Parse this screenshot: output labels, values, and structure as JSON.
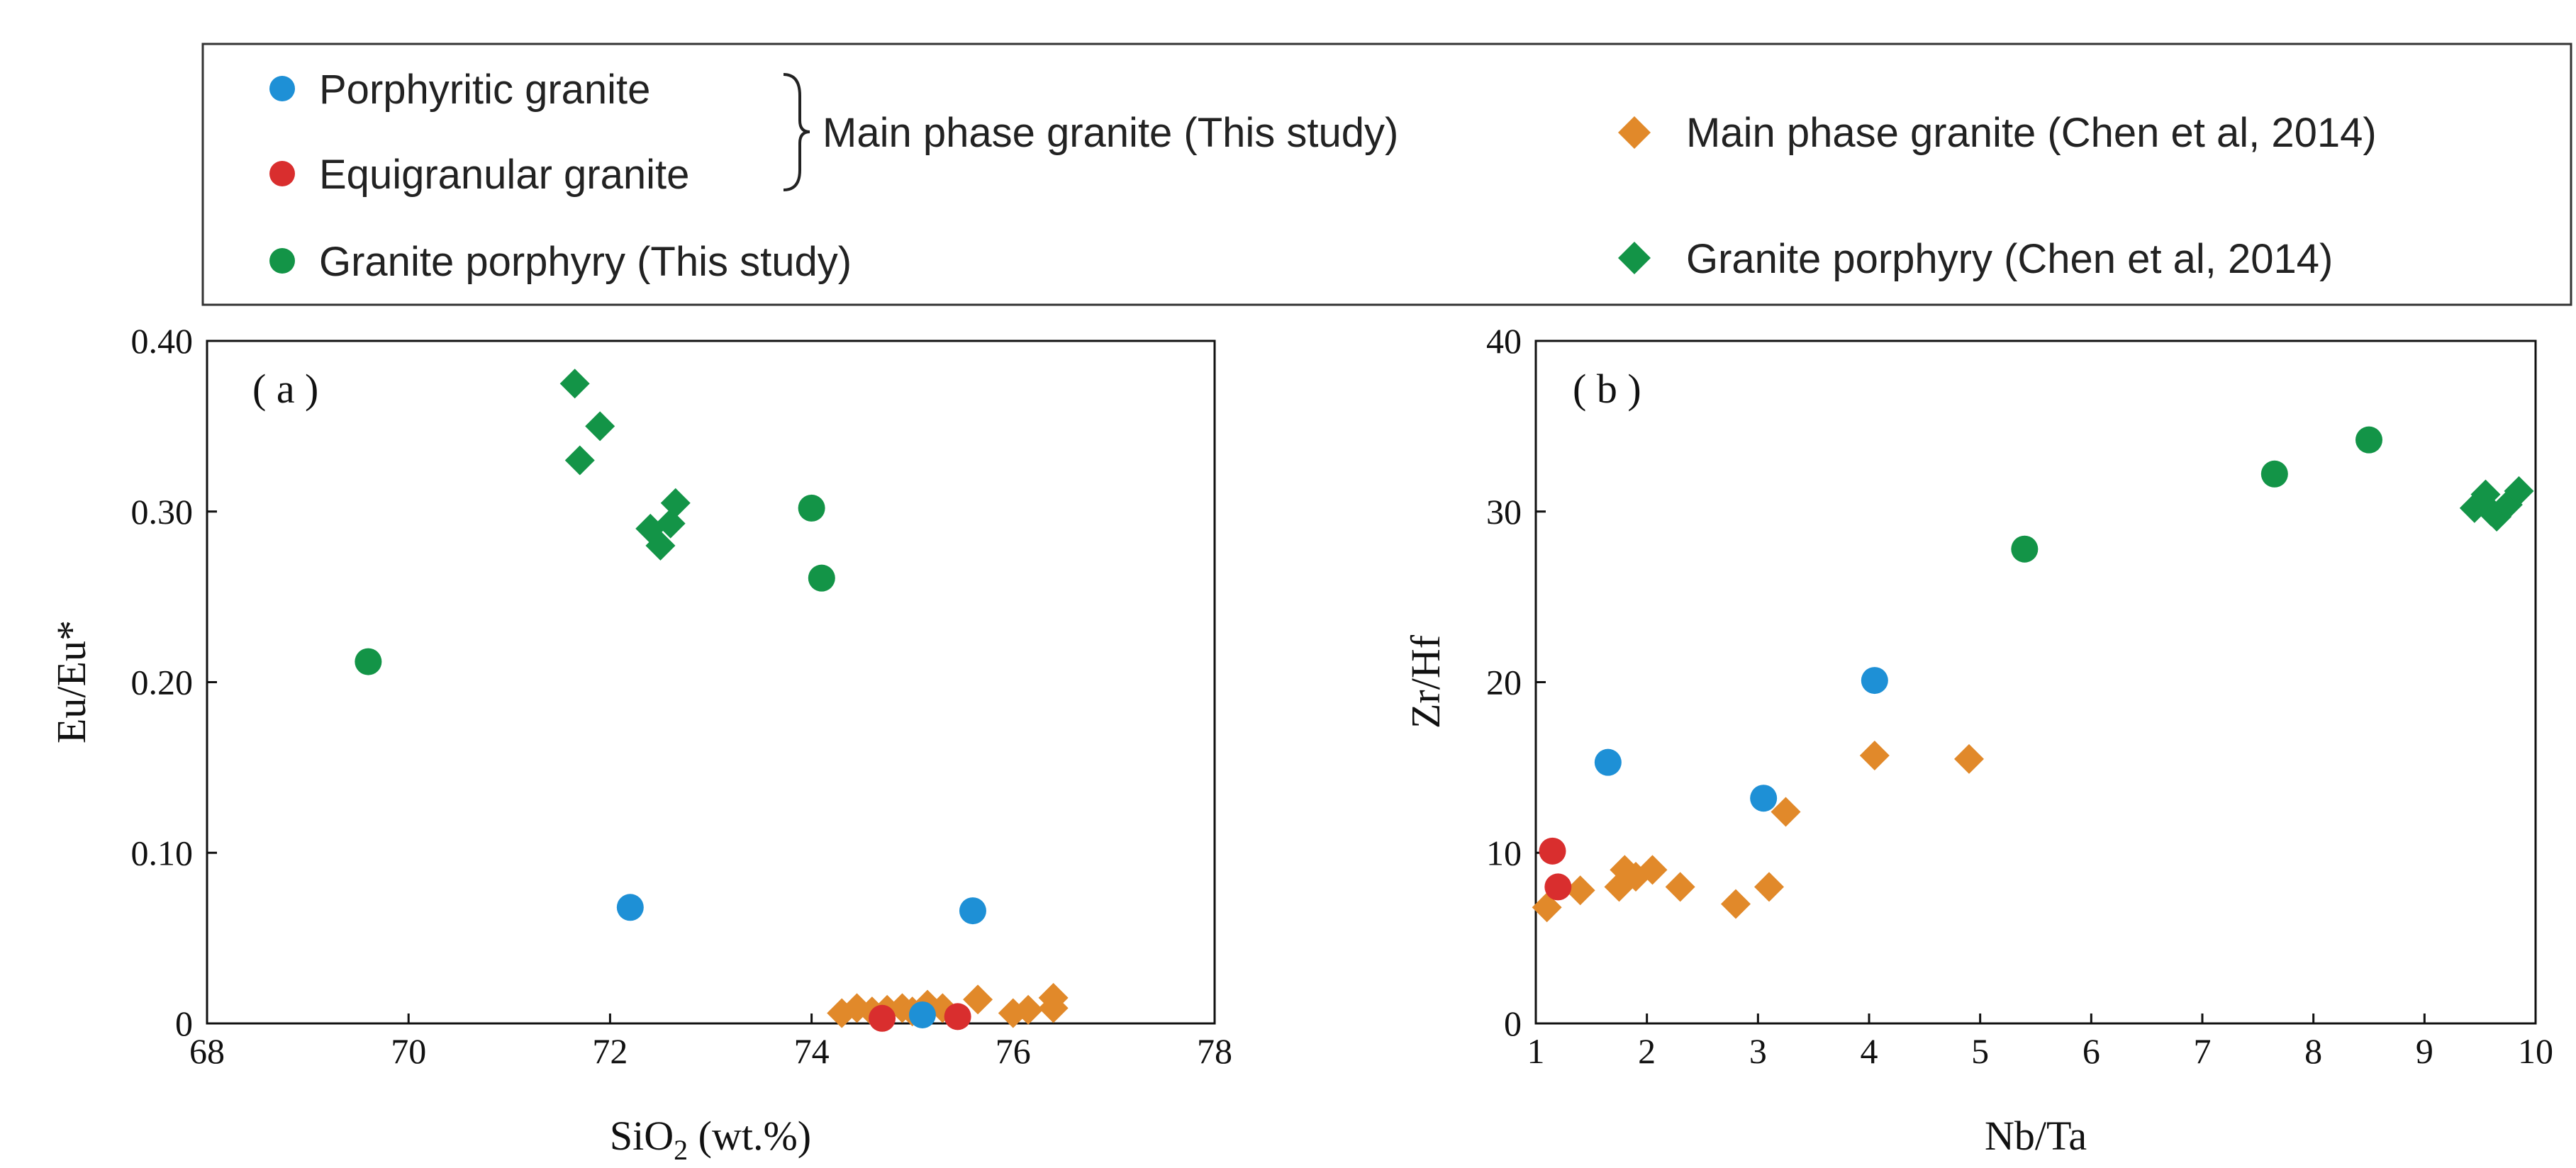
{
  "legend": {
    "porphyritic": "Porphyritic granite",
    "equigranular": "Equigranular granite",
    "main_phase_group": "Main phase granite (This study)",
    "porphyry_this": "Granite porphyry (This study)",
    "main_chen": "Main phase granite (Chen et al, 2014)",
    "porphyry_chen": "Granite porphyry (Chen et al, 2014)"
  },
  "colors": {
    "porphyritic": "#1e90d6",
    "equigranular": "#d92e2e",
    "porphyry": "#139447",
    "main_chen": "#e1892a"
  },
  "chart_data": [
    {
      "type": "scatter",
      "panel": "( a )",
      "xlabel_main": "SiO",
      "xlabel_sub": "2",
      "xlabel_rest": " (wt.%)",
      "ylabel": "Eu/Eu*",
      "xlim": [
        68,
        78
      ],
      "ylim": [
        0,
        0.4
      ],
      "xticks": [
        "68",
        "70",
        "72",
        "74",
        "76",
        "78"
      ],
      "yticks": [
        "0",
        "0.10",
        "0.20",
        "0.30",
        "0.40"
      ],
      "series": [
        {
          "name": "Porphyritic granite",
          "marker": "circle",
          "color": "porphyritic",
          "points": [
            [
              72.2,
              0.068
            ],
            [
              75.6,
              0.066
            ],
            [
              75.1,
              0.005
            ]
          ]
        },
        {
          "name": "Equigranular granite",
          "marker": "circle",
          "color": "equigranular",
          "points": [
            [
              74.7,
              0.003
            ],
            [
              75.45,
              0.004
            ]
          ]
        },
        {
          "name": "Granite porphyry (This study)",
          "marker": "circle",
          "color": "porphyry",
          "points": [
            [
              69.6,
              0.212
            ],
            [
              74.0,
              0.302
            ],
            [
              74.1,
              0.261
            ]
          ]
        },
        {
          "name": "Main phase granite (Chen et al, 2014)",
          "marker": "diamond",
          "color": "main_chen",
          "points": [
            [
              74.3,
              0.006
            ],
            [
              74.45,
              0.009
            ],
            [
              74.6,
              0.007
            ],
            [
              74.75,
              0.008
            ],
            [
              74.9,
              0.009
            ],
            [
              75.0,
              0.007
            ],
            [
              75.15,
              0.011
            ],
            [
              75.3,
              0.009
            ],
            [
              75.65,
              0.014
            ],
            [
              76.0,
              0.006
            ],
            [
              76.15,
              0.008
            ],
            [
              76.4,
              0.009
            ],
            [
              76.4,
              0.015
            ]
          ]
        },
        {
          "name": "Granite porphyry (Chen et al, 2014)",
          "marker": "diamond",
          "color": "porphyry",
          "points": [
            [
              71.65,
              0.375
            ],
            [
              71.7,
              0.33
            ],
            [
              71.9,
              0.35
            ],
            [
              72.4,
              0.29
            ],
            [
              72.5,
              0.28
            ],
            [
              72.6,
              0.293
            ],
            [
              72.65,
              0.305
            ]
          ]
        }
      ]
    },
    {
      "type": "scatter",
      "panel": "( b )",
      "xlabel_main": "Nb/Ta",
      "xlabel_sub": "",
      "xlabel_rest": "",
      "ylabel": "Zr/Hf",
      "xlim": [
        1,
        10
      ],
      "ylim": [
        0,
        40
      ],
      "xticks": [
        "1",
        "2",
        "3",
        "4",
        "5",
        "6",
        "7",
        "8",
        "9",
        "10"
      ],
      "yticks": [
        "0",
        "10",
        "20",
        "30",
        "40"
      ],
      "series": [
        {
          "name": "Porphyritic granite",
          "marker": "circle",
          "color": "porphyritic",
          "points": [
            [
              1.65,
              15.3
            ],
            [
              3.05,
              13.2
            ],
            [
              4.05,
              20.1
            ]
          ]
        },
        {
          "name": "Equigranular granite",
          "marker": "circle",
          "color": "equigranular",
          "points": [
            [
              1.15,
              10.1
            ],
            [
              1.2,
              8.0
            ]
          ]
        },
        {
          "name": "Granite porphyry (This study)",
          "marker": "circle",
          "color": "porphyry",
          "points": [
            [
              5.4,
              27.8
            ],
            [
              7.65,
              32.2
            ],
            [
              8.5,
              34.2
            ]
          ]
        },
        {
          "name": "Main phase granite (Chen et al, 2014)",
          "marker": "diamond",
          "color": "main_chen",
          "points": [
            [
              1.1,
              6.8
            ],
            [
              1.4,
              7.8
            ],
            [
              1.75,
              8.0
            ],
            [
              1.8,
              9.0
            ],
            [
              1.9,
              8.6
            ],
            [
              2.05,
              9.0
            ],
            [
              2.3,
              8.0
            ],
            [
              2.8,
              7.0
            ],
            [
              3.1,
              8.0
            ],
            [
              3.25,
              12.4
            ],
            [
              4.05,
              15.7
            ],
            [
              4.9,
              15.5
            ]
          ]
        },
        {
          "name": "Granite porphyry (Chen et al, 2014)",
          "marker": "diamond",
          "color": "porphyry",
          "points": [
            [
              9.45,
              30.2
            ],
            [
              9.55,
              31.0
            ],
            [
              9.6,
              30.0
            ],
            [
              9.65,
              29.7
            ],
            [
              9.75,
              30.4
            ],
            [
              9.85,
              31.2
            ]
          ]
        }
      ]
    }
  ]
}
